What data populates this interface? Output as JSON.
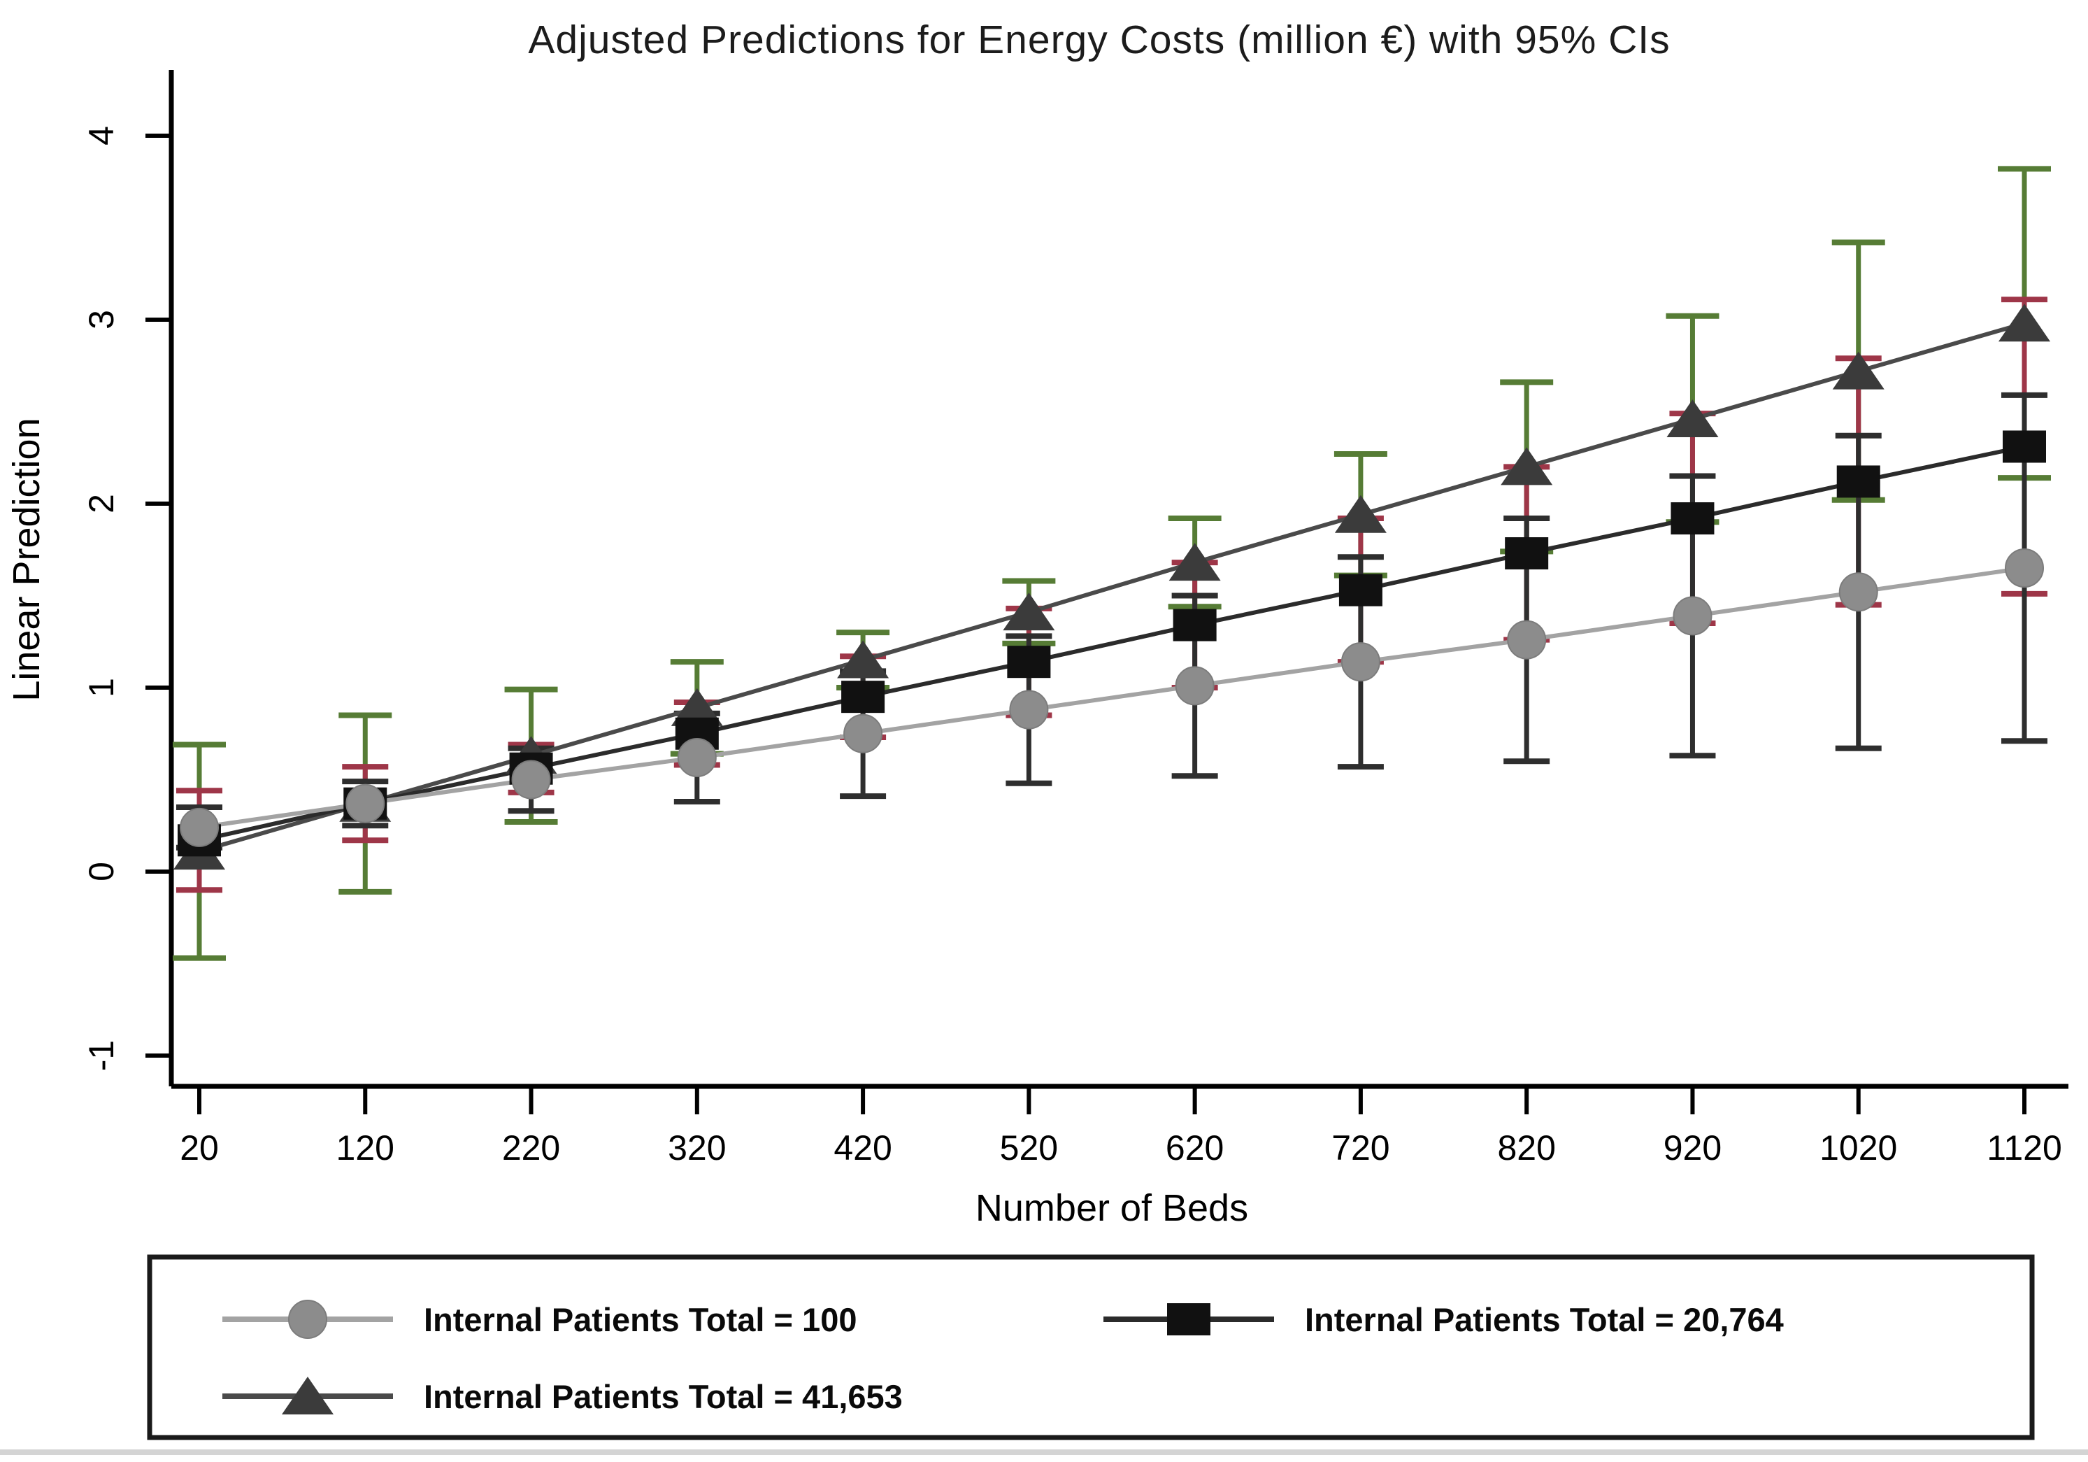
{
  "title": "Adjusted Predictions for Energy Costs (million €) with 95% CIs",
  "y_axis": {
    "label": "Linear Prediction",
    "ticks": [
      4,
      3,
      2,
      1,
      0,
      -1
    ]
  },
  "x_axis": {
    "label": "Number of Beds",
    "ticks": [
      20,
      120,
      220,
      320,
      420,
      520,
      620,
      720,
      820,
      920,
      1020,
      1120
    ]
  },
  "legend": {
    "entries": [
      {
        "label": "Internal Patients Total = 100",
        "series": "circle"
      },
      {
        "label": "Internal Patients Total = 20,764",
        "series": "square"
      },
      {
        "label": "Internal Patients Total = 41,653",
        "series": "triangle"
      }
    ]
  },
  "colors": {
    "background": "#ffffff",
    "axis": "#000000",
    "legend_border": "#1a1a1a",
    "bottom_strip": "#d4d4d4"
  },
  "chart_data": {
    "type": "line",
    "title": "Adjusted Predictions for Energy Costs (million €) with 95% CIs",
    "xlabel": "Number of Beds",
    "ylabel": "Linear Prediction",
    "xlim": [
      20,
      1120
    ],
    "ylim": [
      -1.17,
      4.35
    ],
    "grid": false,
    "legend_position": "bottom-box",
    "x": [
      20,
      120,
      220,
      320,
      420,
      520,
      620,
      720,
      820,
      920,
      1020,
      1120
    ],
    "series": [
      {
        "name": "Internal Patients Total = 100",
        "marker": "circle",
        "line_color": "#a3a3a3",
        "marker_color": "#8c8c8c",
        "ci_color": "#2e2e2e",
        "values": [
          0.24,
          0.37,
          0.5,
          0.62,
          0.75,
          0.88,
          1.01,
          1.14,
          1.26,
          1.39,
          1.52,
          1.65
        ],
        "ci_low": [
          0.13,
          0.25,
          0.33,
          0.38,
          0.41,
          0.48,
          0.52,
          0.57,
          0.6,
          0.63,
          0.67,
          0.71
        ],
        "ci_high": [
          0.35,
          0.49,
          0.67,
          0.86,
          1.09,
          1.28,
          1.5,
          1.71,
          1.92,
          2.15,
          2.37,
          2.59
        ]
      },
      {
        "name": "Internal Patients Total = 20,764",
        "marker": "square",
        "line_color": "#2b2b2b",
        "marker_color": "#111111",
        "ci_color": "#9e3648",
        "values": [
          0.17,
          0.37,
          0.56,
          0.75,
          0.95,
          1.14,
          1.34,
          1.53,
          1.73,
          1.92,
          2.12,
          2.31
        ],
        "ci_low": [
          -0.1,
          0.17,
          0.43,
          0.58,
          0.73,
          0.85,
          1.0,
          1.14,
          1.26,
          1.35,
          1.45,
          1.51
        ],
        "ci_high": [
          0.44,
          0.57,
          0.69,
          0.92,
          1.17,
          1.43,
          1.68,
          1.92,
          2.2,
          2.49,
          2.79,
          3.11
        ]
      },
      {
        "name": "Internal Patients Total = 41,653",
        "marker": "triangle",
        "line_color": "#4a4a4a",
        "marker_color": "#3b3b3b",
        "ci_color": "#567c35",
        "values": [
          0.11,
          0.37,
          0.63,
          0.89,
          1.15,
          1.41,
          1.68,
          1.94,
          2.2,
          2.46,
          2.72,
          2.98
        ],
        "ci_low": [
          -0.47,
          -0.11,
          0.27,
          0.64,
          1.0,
          1.24,
          1.44,
          1.61,
          1.74,
          1.9,
          2.02,
          2.14
        ],
        "ci_high": [
          0.69,
          0.85,
          0.99,
          1.14,
          1.3,
          1.58,
          1.92,
          2.27,
          2.66,
          3.02,
          3.42,
          3.82
        ]
      }
    ]
  }
}
